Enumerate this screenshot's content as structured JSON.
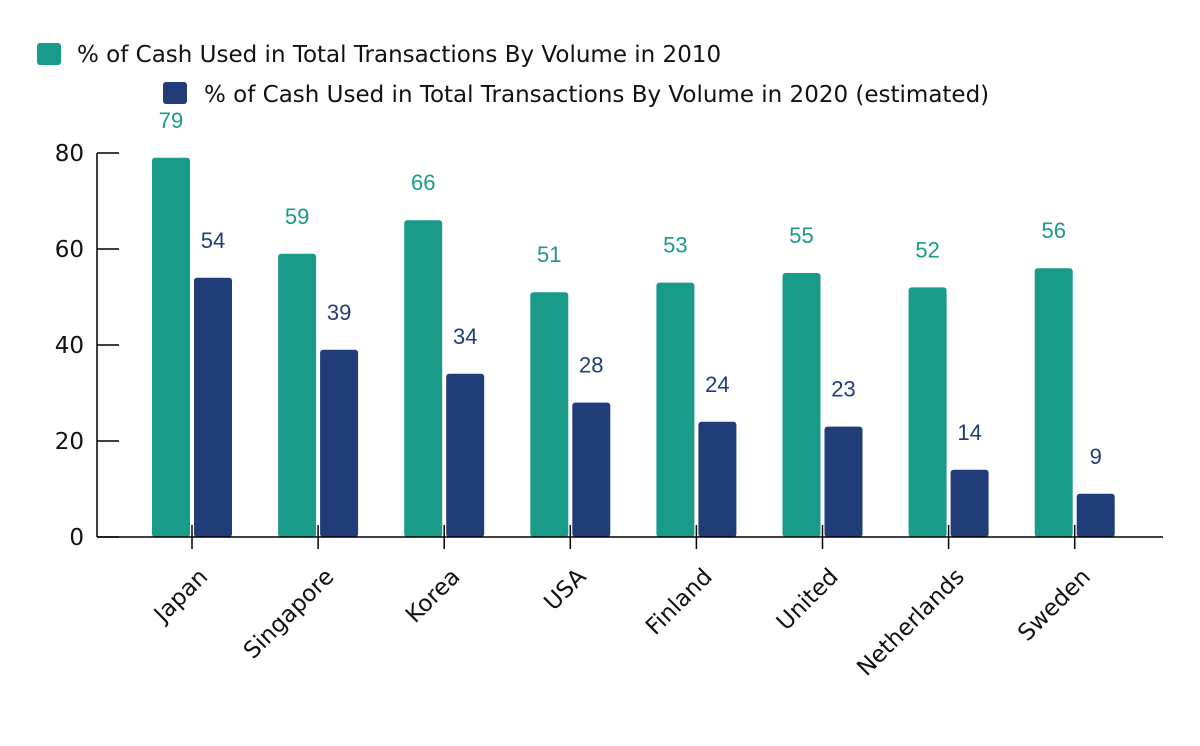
{
  "chart_data": {
    "type": "bar",
    "categories": [
      "Japan",
      "Singapore",
      "Korea",
      "USA",
      "Finland",
      "United",
      "Netherlands",
      "Sweden"
    ],
    "series": [
      {
        "name": "% of Cash Used in Total Transactions By Volume in 2010",
        "color": "#1a9a89",
        "values": [
          79,
          59,
          66,
          51,
          53,
          55,
          52,
          56
        ]
      },
      {
        "name": "% of Cash Used in Total Transactions By Volume in 2020 (estimated)",
        "color": "#213d77",
        "values": [
          54,
          39,
          34,
          28,
          24,
          23,
          14,
          9
        ]
      }
    ],
    "ylim": [
      0,
      80
    ],
    "yticks": [
      "0",
      "20",
      "40",
      "60",
      "80"
    ],
    "grid": false,
    "legend_position": "top-left",
    "data_labels": true
  }
}
